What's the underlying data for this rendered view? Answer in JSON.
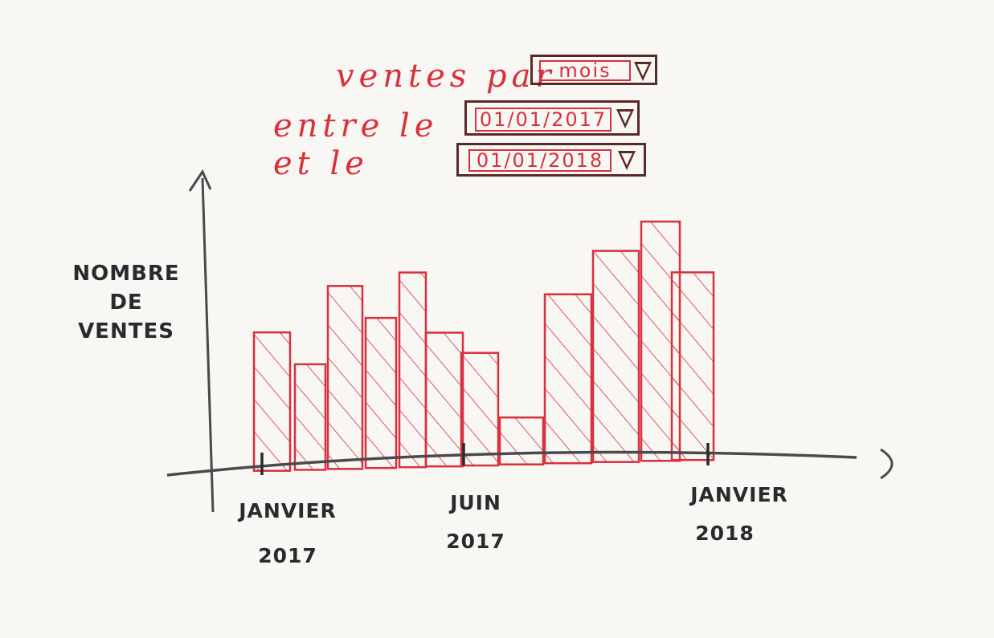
{
  "controls": {
    "ventes_par_label": "ventes par",
    "granularity_value": "mois",
    "entre_le_label": "entre le",
    "start_date_value": "01/01/2017",
    "et_le_label": "et le",
    "end_date_value": "01/01/2018"
  },
  "colors": {
    "accent_red": "#d8303d",
    "field_border": "#5a2a28",
    "ink": "#2a2a2e",
    "axis": "#4a4a4e"
  },
  "chart_data": {
    "type": "bar",
    "ylabel": [
      "NOMBRE",
      "DE",
      "VENTES"
    ],
    "x_tick_labels": [
      {
        "line1": "JANVIER",
        "line2": "2017"
      },
      {
        "line1": "JUIN",
        "line2": "2017"
      },
      {
        "line1": "JANVIER",
        "line2": "2018"
      }
    ],
    "values": [
      59,
      45,
      78,
      64,
      83,
      57,
      48,
      20,
      72,
      90,
      102,
      80
    ],
    "ylim": [
      0,
      130
    ],
    "grid": false,
    "legend": "none"
  }
}
